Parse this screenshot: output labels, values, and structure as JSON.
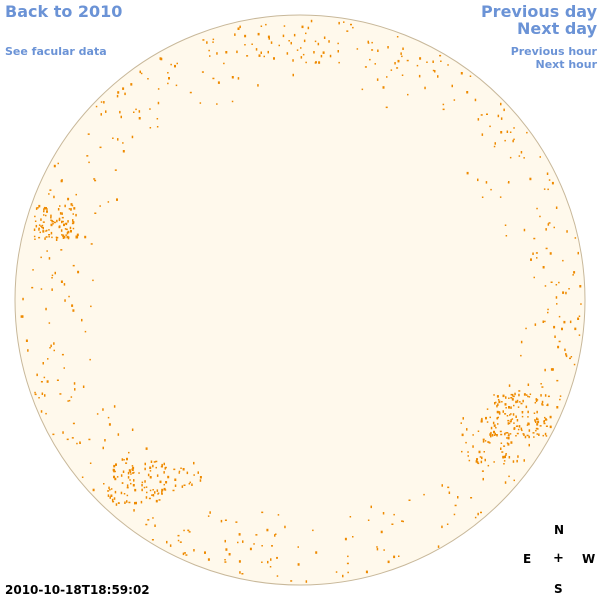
{
  "nav": {
    "back_label": "Back to 2010",
    "facular_label": "See facular data",
    "previous_day_label": "Previous day",
    "next_day_label": "Next day",
    "previous_hour_label": "Previous hour",
    "next_hour_label": "Next hour"
  },
  "compass": {
    "north": "N",
    "south": "S",
    "east": "E",
    "west": "W",
    "center": "+"
  },
  "timestamp": "2010-10-18T18:59:02",
  "colors": {
    "link": "#6b93d6",
    "disk_fill": "#fff9ec",
    "disk_stroke": "#c8b89a",
    "faculae": "#ee8a00"
  }
}
